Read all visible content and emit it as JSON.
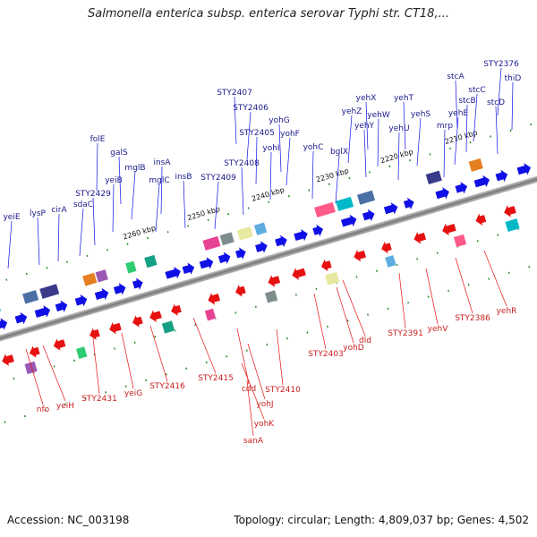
{
  "title": "Salmonella enterica subsp. enterica serovar Typhi str. CT18,...",
  "accession": "Accession: NC_003198",
  "summary": "Topology: circular; Length: 4,809,037 bp; Genes: 4,502",
  "scale_labels": [
    "2210 kbp",
    "2220 kbp",
    "2230 kbp",
    "2240 kbp",
    "2250 kbp",
    "2260 kbp"
  ],
  "top_genes": [
    "STY2376",
    "thiD",
    "stcA",
    "stcC",
    "stcB",
    "stcD",
    "yehE",
    "mrp",
    "yehT",
    "yehS",
    "yehU",
    "yehX",
    "yehZ",
    "yehW",
    "yehY",
    "bglX",
    "yohC",
    "yohG",
    "yohF",
    "yohI",
    "STY2407",
    "STY2406",
    "STY2405",
    "STY2408",
    "STY2409",
    "insA",
    "insB",
    "mglC",
    "folE",
    "galS",
    "mglB",
    "yeiB",
    "STY2429",
    "sdaC",
    "cirA",
    "lysP",
    "yeiE"
  ],
  "bottom_genes": [
    "yehR",
    "STY2386",
    "yehV",
    "STY2391",
    "dld",
    "yohD",
    "STY2403",
    "STY2410",
    "yohK",
    "yohJ",
    "cdd",
    "sanA",
    "STY2415",
    "STY2416",
    "yeiG",
    "STY2431",
    "yeiH",
    "nfo"
  ],
  "colors": {
    "forward": "#1010e6",
    "reverse": "#e61010",
    "forward_label": "#1a1a8c",
    "reverse_label": "#c81e1e",
    "backbone": "#8a8a8a",
    "tick": "#2a8a2a"
  }
}
